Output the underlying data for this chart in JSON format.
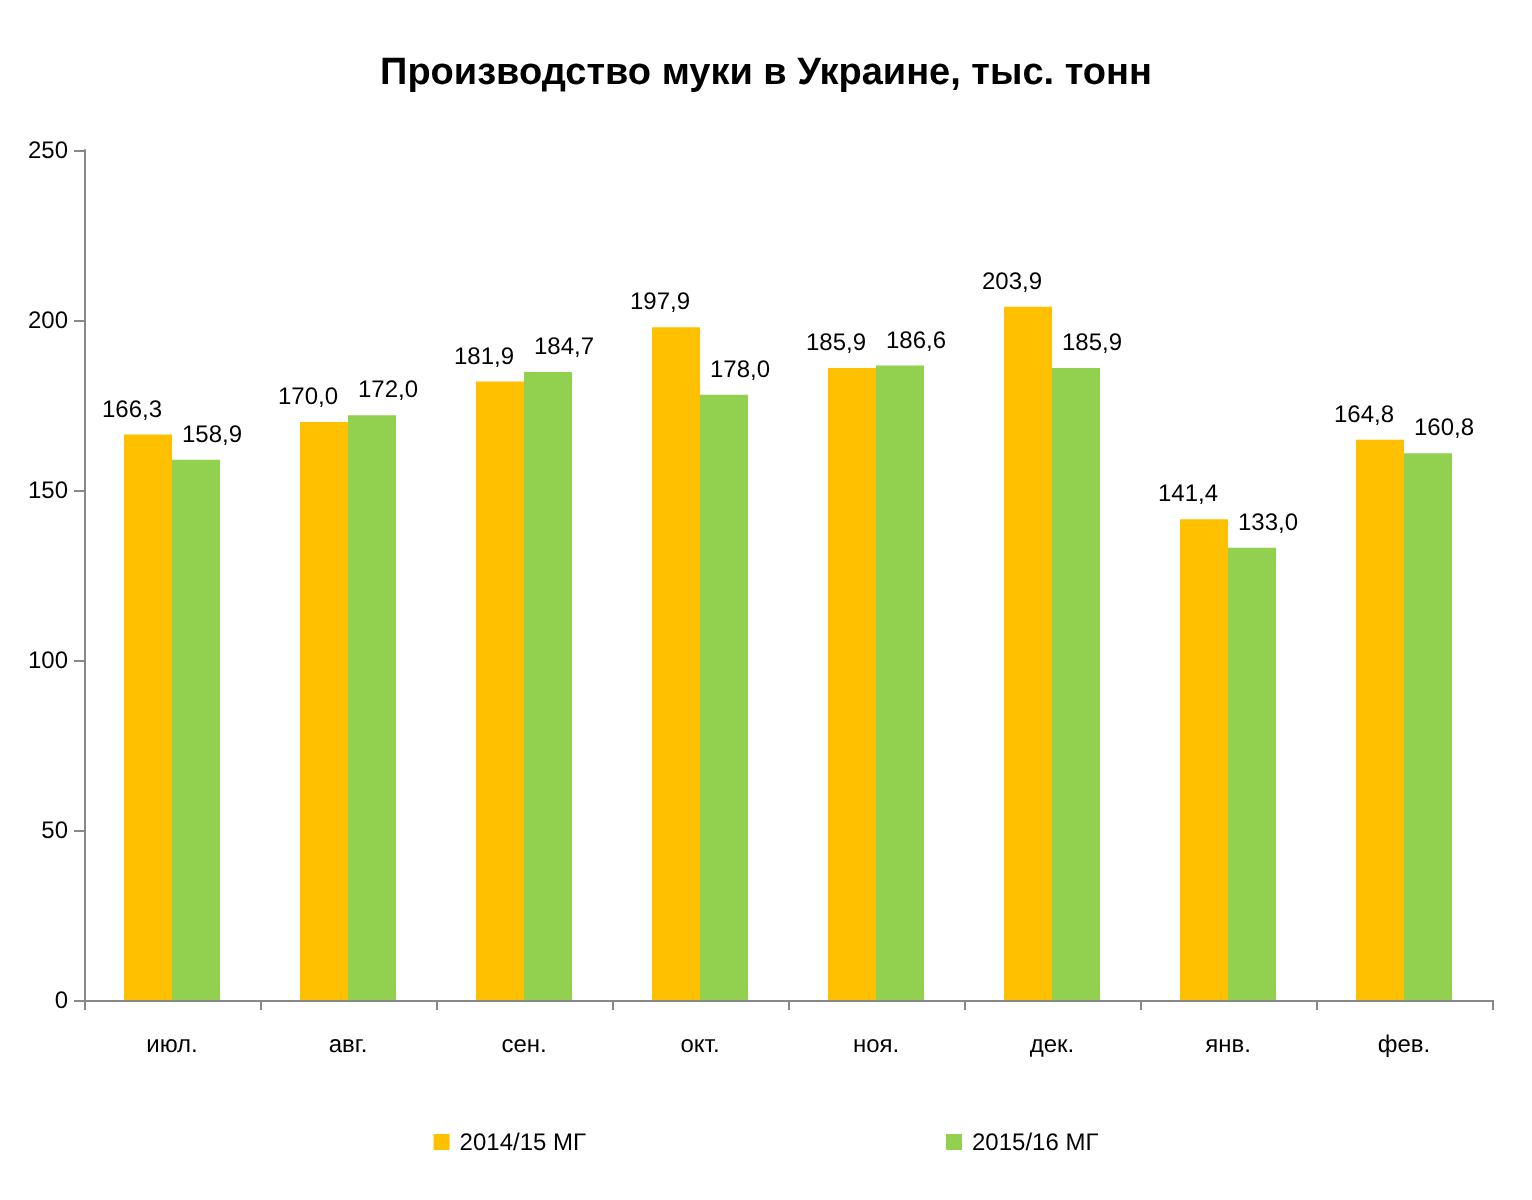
{
  "chart_data": {
    "type": "bar",
    "title": "Производство муки в Украине, тыс. тонн",
    "categories": [
      "июл.",
      "авг.",
      "сен.",
      "окт.",
      "ноя.",
      "дек.",
      "янв.",
      "фев."
    ],
    "series": [
      {
        "name": "2014/15 МГ",
        "color": "#ffc000",
        "values": [
          166.3,
          170.0,
          181.9,
          197.9,
          185.9,
          203.9,
          141.4,
          164.8
        ],
        "value_labels": [
          "166,3",
          "170,0",
          "181,9",
          "197,9",
          "185,9",
          "203,9",
          "141,4",
          "164,8"
        ]
      },
      {
        "name": "2015/16 МГ",
        "color": "#92d050",
        "values": [
          158.9,
          172.0,
          184.7,
          178.0,
          186.6,
          185.9,
          133.0,
          160.8
        ],
        "value_labels": [
          "158,9",
          "172,0",
          "184,7",
          "178,0",
          "186,6",
          "185,9",
          "133,0",
          "160,8"
        ]
      }
    ],
    "ylim": [
      0,
      250
    ],
    "yticks": [
      0,
      50,
      100,
      150,
      200,
      250
    ],
    "grid": false,
    "legend": "bottom"
  }
}
